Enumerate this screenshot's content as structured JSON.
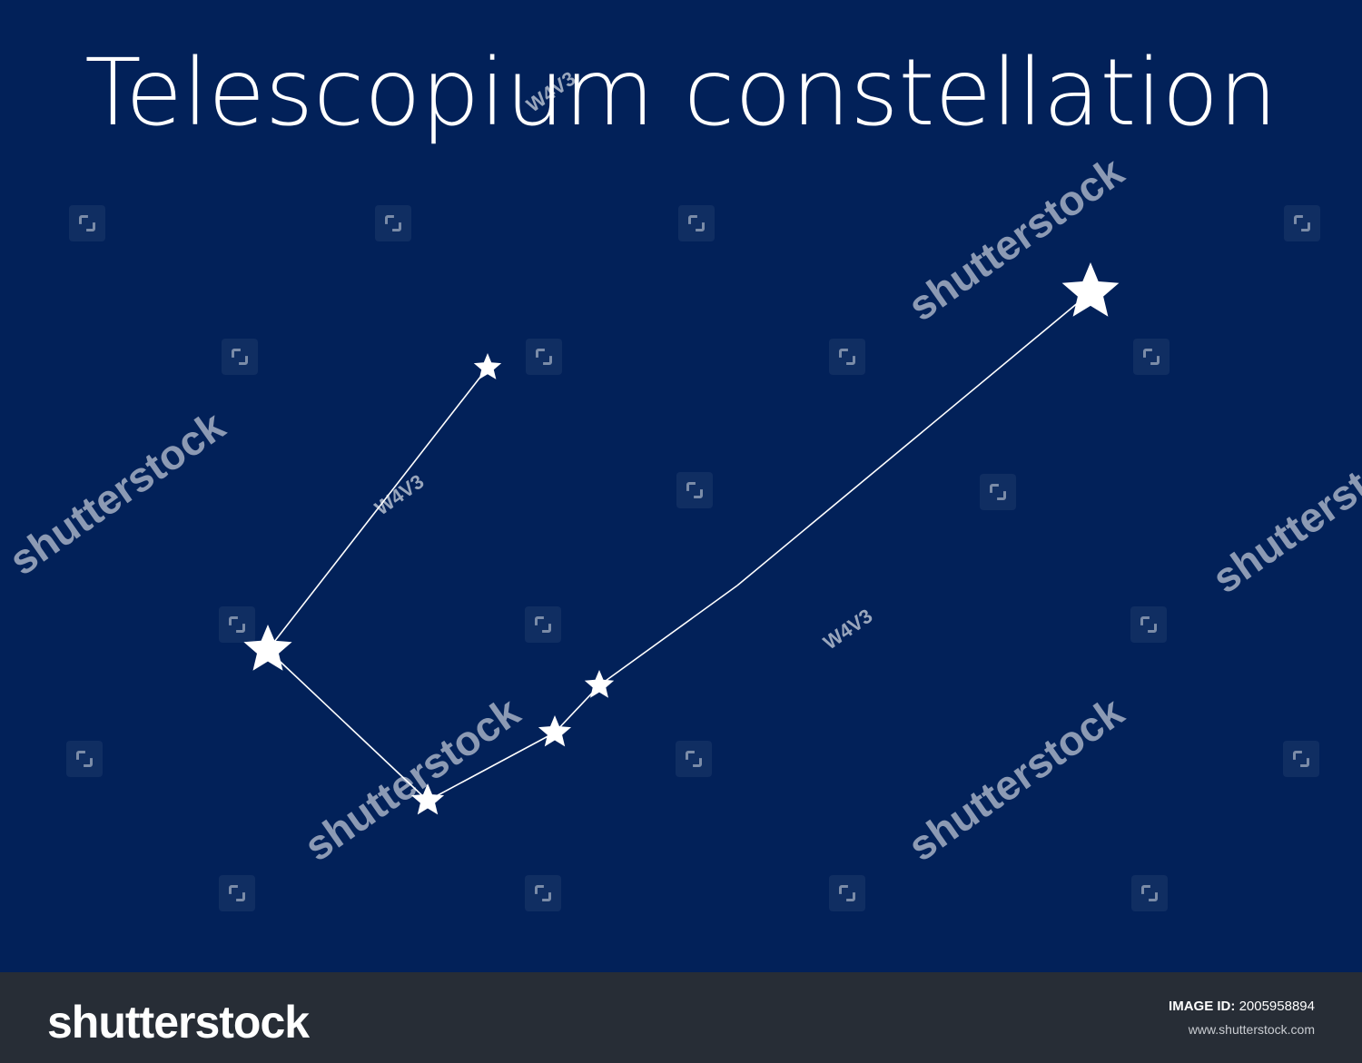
{
  "title": "Telescopium constellation",
  "colors": {
    "background": "#022159",
    "star": "#ffffff",
    "line": "#ffffff",
    "footer": "#272d36"
  },
  "watermark": {
    "brand": "shutterstock",
    "code": "W4V3",
    "icon": "shutterstock-logo-icon"
  },
  "footer": {
    "logo_text": "shutterstock",
    "image_id_label": "IMAGE ID:",
    "image_id": "2005958894",
    "url": "www.shutterstock.com"
  }
}
